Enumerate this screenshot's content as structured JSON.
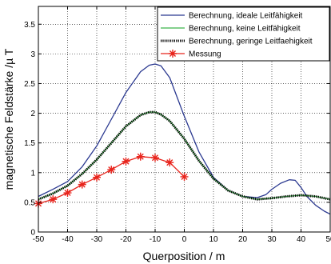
{
  "chart_data": {
    "type": "line",
    "xlabel": "Querposition / m",
    "ylabel": "magnetische Feldstärke /µ T",
    "xlim": [
      -50,
      50
    ],
    "ylim": [
      0,
      3.8
    ],
    "xticks": [
      -50,
      -40,
      -30,
      -20,
      -10,
      0,
      10,
      20,
      30,
      40,
      50
    ],
    "xtick_labels": [
      "-50",
      "-40",
      "-30",
      "-20",
      "-10",
      "0",
      "10",
      "20",
      "30",
      "40",
      "50"
    ],
    "yticks": [
      0,
      0.5,
      1,
      1.5,
      2,
      2.5,
      3,
      3.5
    ],
    "ytick_labels": [
      "0",
      "0.5",
      "1",
      "1.5",
      "2",
      "2.5",
      "3",
      "3.5"
    ],
    "grid": true,
    "legend_position": "top-right",
    "series": [
      {
        "name": "Berechnung, ideale Leitfähigkeit",
        "color": "#2b3990",
        "style": "solid",
        "x": [
          -50,
          -45,
          -40,
          -35,
          -30,
          -25,
          -20,
          -15,
          -12,
          -10,
          -8,
          -5,
          0,
          5,
          10,
          15,
          20,
          25,
          28,
          30,
          33,
          36,
          38,
          40,
          42,
          45,
          48,
          50
        ],
        "y": [
          0.6,
          0.72,
          0.85,
          1.1,
          1.45,
          1.9,
          2.35,
          2.7,
          2.81,
          2.83,
          2.8,
          2.6,
          1.95,
          1.35,
          0.92,
          0.7,
          0.6,
          0.58,
          0.63,
          0.72,
          0.82,
          0.88,
          0.87,
          0.75,
          0.6,
          0.45,
          0.35,
          0.3
        ]
      },
      {
        "name": "Berechnung, keine Leitfähigkeit",
        "color": "#3cb44b",
        "style": "solid",
        "x": [
          -50,
          -45,
          -40,
          -35,
          -30,
          -25,
          -20,
          -15,
          -12,
          -10,
          -8,
          -5,
          0,
          5,
          10,
          15,
          20,
          25,
          30,
          35,
          40,
          45,
          50
        ],
        "y": [
          0.55,
          0.65,
          0.78,
          0.98,
          1.22,
          1.5,
          1.78,
          1.97,
          2.02,
          2.02,
          1.98,
          1.87,
          1.57,
          1.2,
          0.9,
          0.7,
          0.6,
          0.55,
          0.57,
          0.6,
          0.62,
          0.6,
          0.55
        ]
      },
      {
        "name": "Berechnung, geringe Leitfaehigkeit",
        "color": "#000000",
        "style": "dotted",
        "x": [
          -50,
          -45,
          -40,
          -35,
          -30,
          -25,
          -20,
          -15,
          -12,
          -10,
          -8,
          -5,
          0,
          5,
          10,
          15,
          20,
          25,
          30,
          35,
          40,
          45,
          50
        ],
        "y": [
          0.55,
          0.65,
          0.78,
          0.98,
          1.22,
          1.5,
          1.78,
          1.97,
          2.02,
          2.02,
          1.98,
          1.87,
          1.57,
          1.2,
          0.9,
          0.7,
          0.6,
          0.55,
          0.57,
          0.6,
          0.62,
          0.6,
          0.55
        ]
      },
      {
        "name": "Messung",
        "color": "#e8241c",
        "style": "solid-star-markers",
        "x": [
          -50,
          -45,
          -40,
          -35,
          -30,
          -25,
          -20,
          -15,
          -10,
          -5,
          0
        ],
        "y": [
          0.48,
          0.55,
          0.66,
          0.8,
          0.92,
          1.05,
          1.19,
          1.27,
          1.25,
          1.17,
          0.93
        ]
      }
    ]
  }
}
